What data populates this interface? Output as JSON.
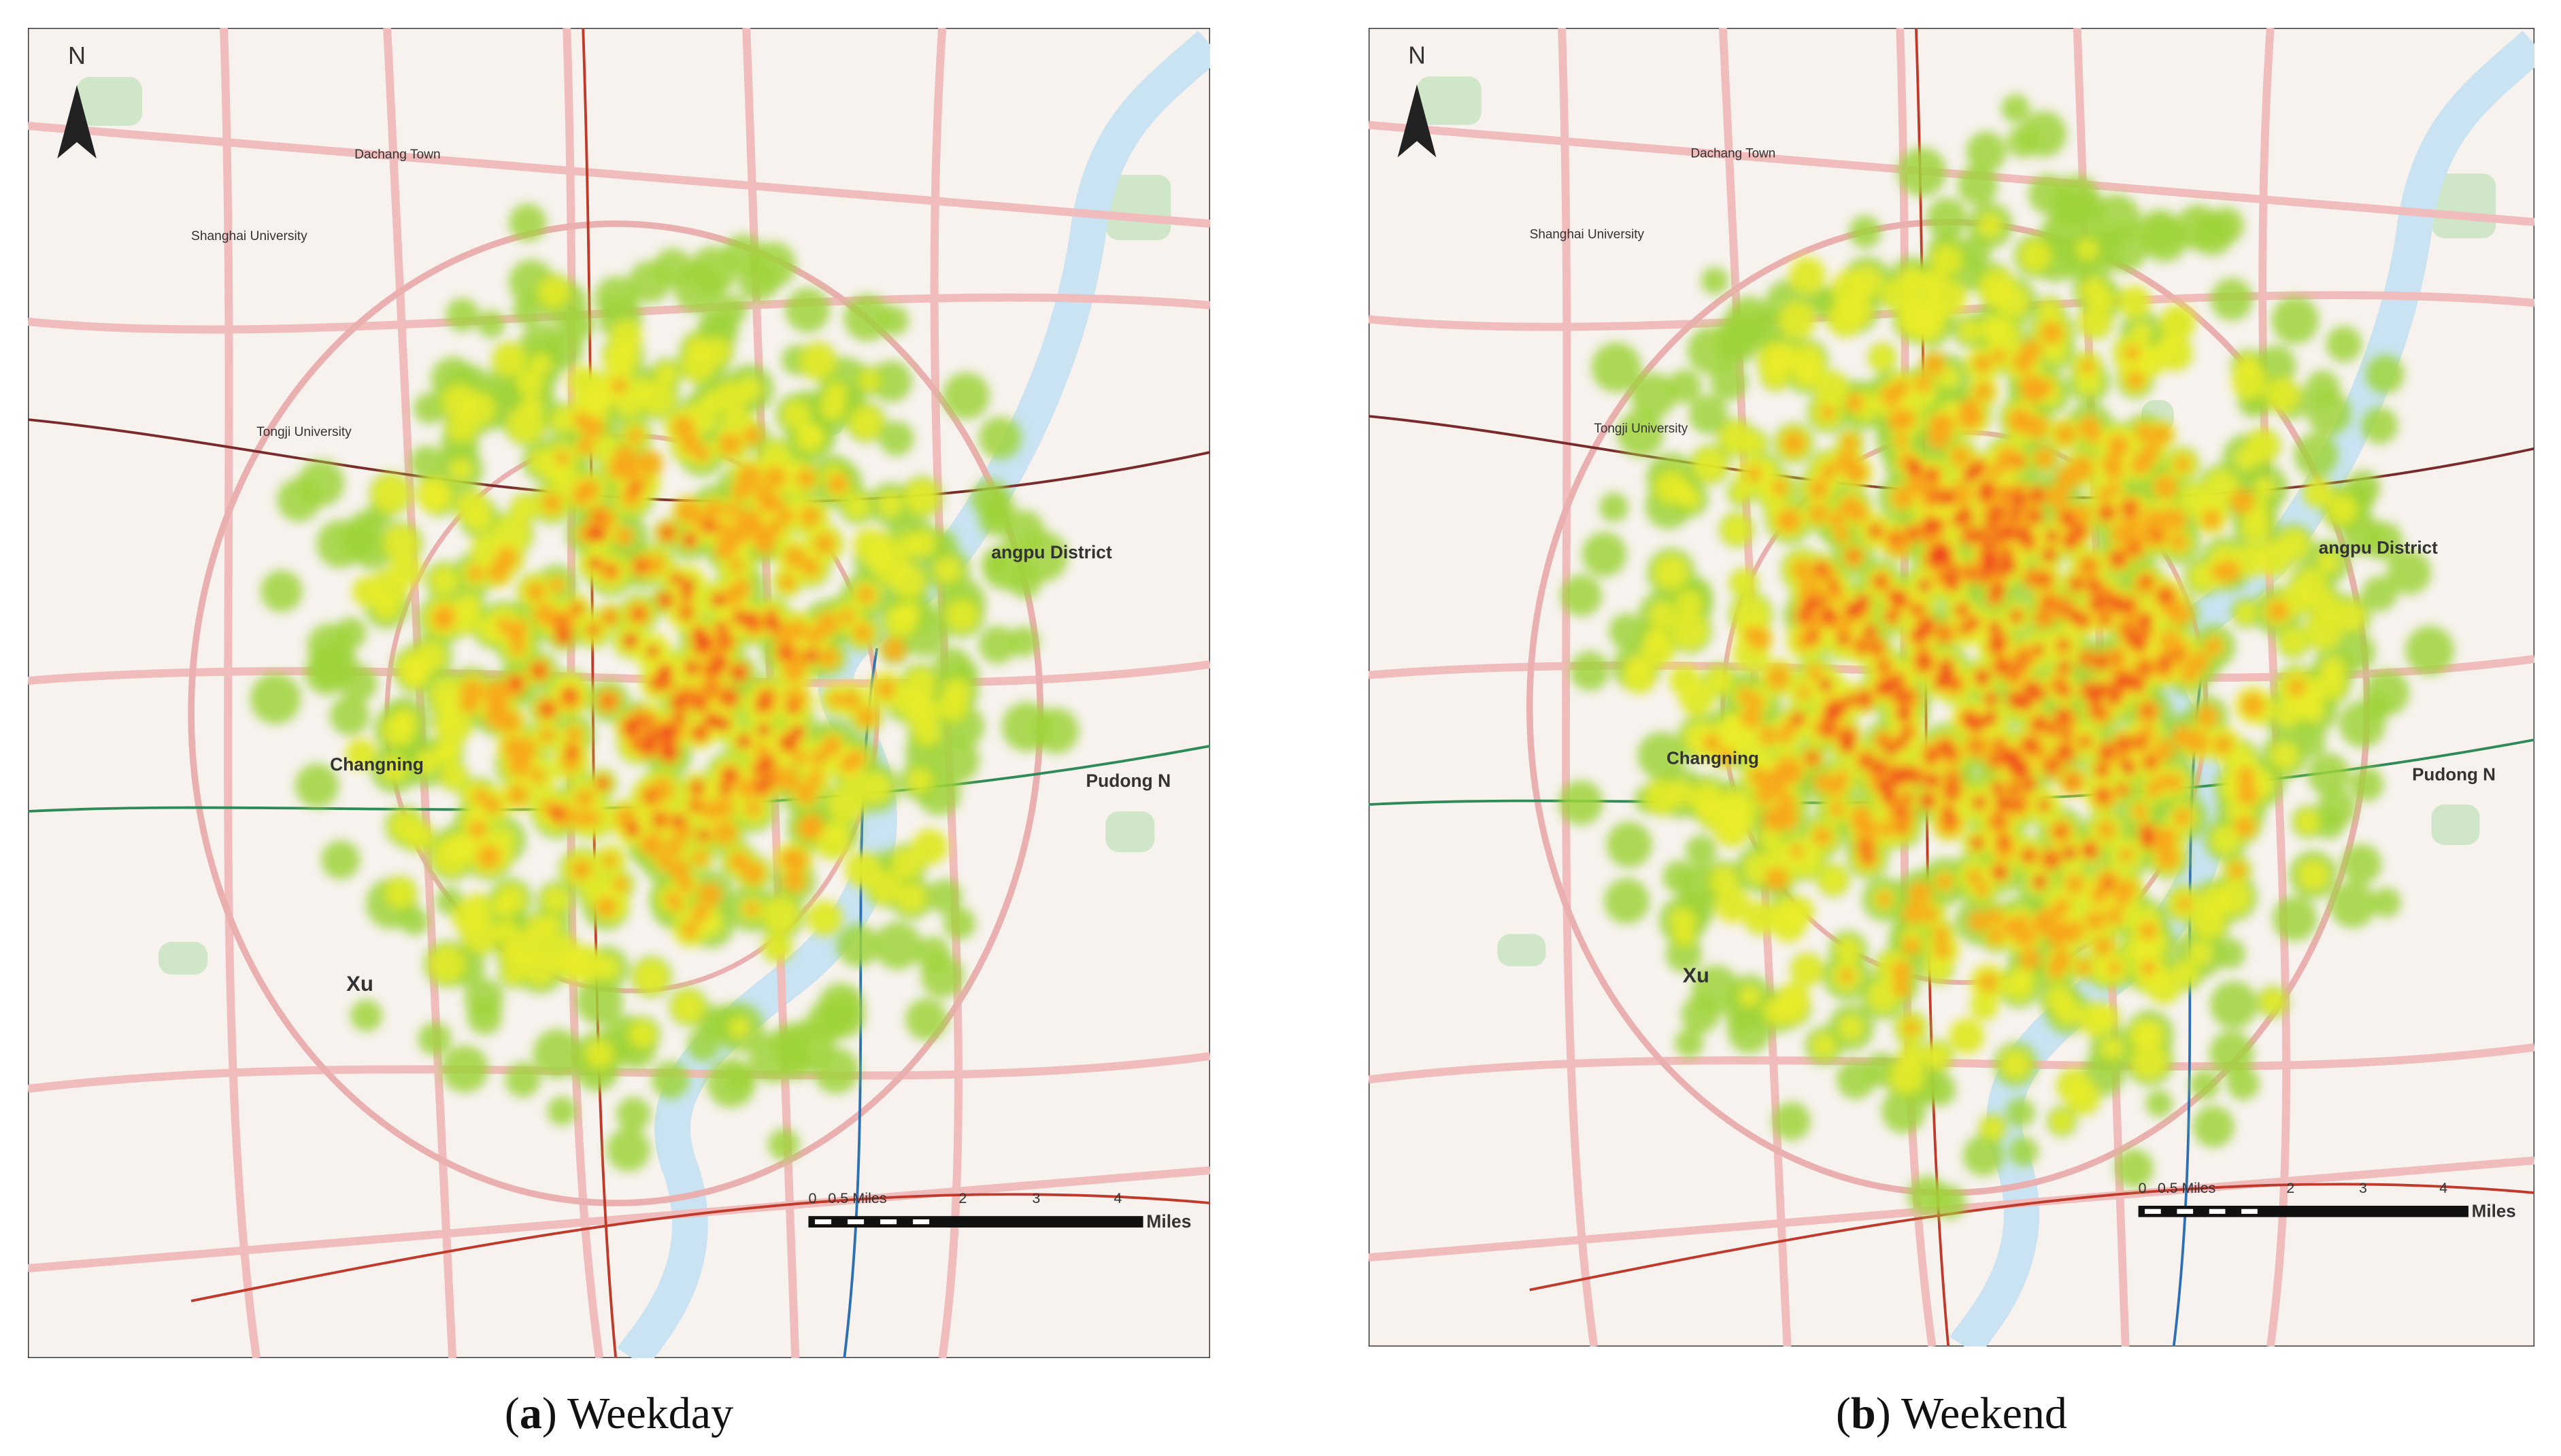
{
  "panels": [
    {
      "caption": [
        "(",
        "a",
        ") Weekday"
      ],
      "labels": [
        "N",
        "Shanghai University",
        "Dachang Town",
        "Tongji University",
        "Changning",
        "Xu",
        "angpu District",
        "Pudong N",
        "0",
        "0.5 Miles",
        "2",
        "3",
        "4",
        "Miles"
      ]
    },
    {
      "caption": [
        "(",
        "b",
        ") Weekend"
      ],
      "labels": [
        "N",
        "Shanghai University",
        "Dachang Town",
        "Tongji University",
        "Changning",
        "Xu",
        "angpu District",
        "Pudong N",
        "0",
        "0.5 Miles",
        "2",
        "3",
        "4",
        "Miles"
      ]
    }
  ]
}
